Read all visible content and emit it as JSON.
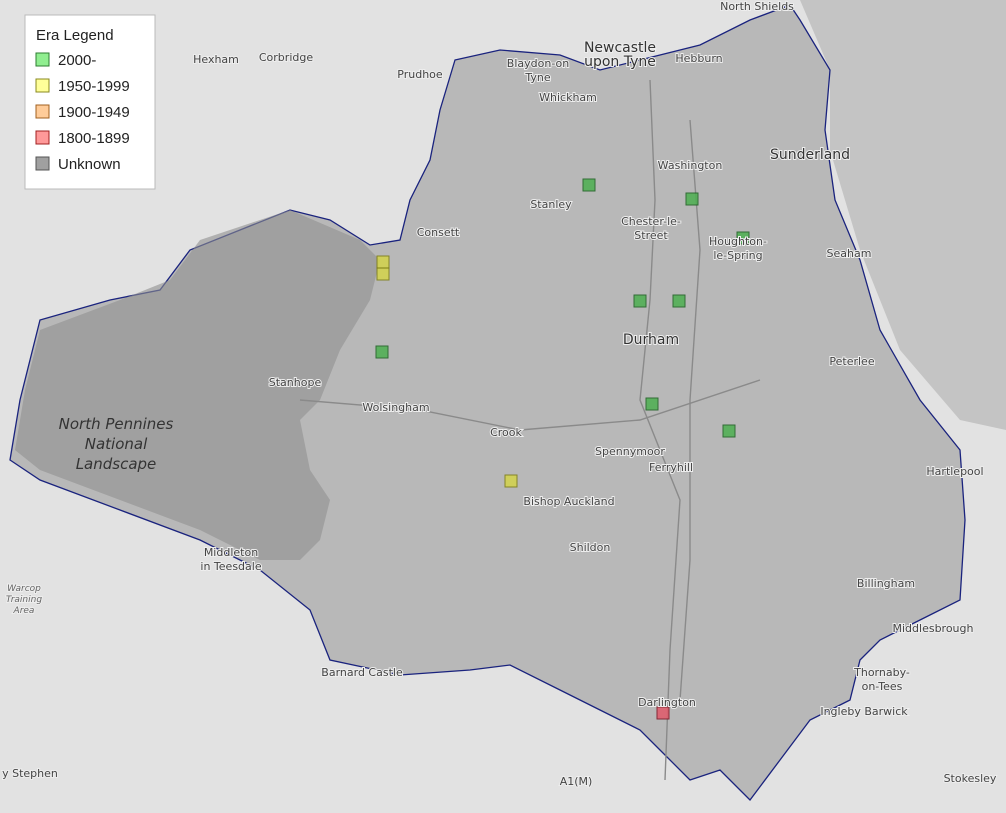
{
  "legend": {
    "title": "Era Legend",
    "items": [
      "2000-",
      "1950-1999",
      "1900-1949",
      "1800-1899",
      "Unknown"
    ]
  },
  "places": [
    [
      "North Shields"
    ],
    [
      "Newcastle",
      "upon Tyne"
    ],
    [
      "Hexham"
    ],
    [
      "Corbridge"
    ],
    [
      "Prudhoe"
    ],
    [
      "Blaydon-on",
      "Tyne"
    ],
    [
      "Hebburn"
    ],
    [
      "Whickham"
    ],
    [
      "Washington"
    ],
    [
      "Sunderland"
    ],
    [
      "Stanley"
    ],
    [
      "Chester-le-",
      "Street"
    ],
    [
      "Houghton-",
      "le-Spring"
    ],
    [
      "Consett"
    ],
    [
      "Seaham"
    ],
    [
      "Durham"
    ],
    [
      "Peterlee"
    ],
    [
      "Stanhope"
    ],
    [
      "Wolsingham"
    ],
    [
      "Crook"
    ],
    [
      "Spennymoor"
    ],
    [
      "Ferryhill"
    ],
    [
      "Hartlepool"
    ],
    [
      "North Pennines",
      "National",
      "Landscape"
    ],
    [
      "Bishop Auckland"
    ],
    [
      "Shildon"
    ],
    [
      "Middleton",
      "in Teesdale"
    ],
    [
      "Warcop",
      "Training",
      "Area"
    ],
    [
      "Billingham"
    ],
    [
      "Middlesbrough"
    ],
    [
      "Thornaby-",
      "on-Tees"
    ],
    [
      "Barnard Castle"
    ],
    [
      "Darlington"
    ],
    [
      "Ingleby Barwick"
    ],
    [
      "A1(M)"
    ],
    [
      "Stokesley"
    ],
    [
      "y Stephen"
    ]
  ]
}
